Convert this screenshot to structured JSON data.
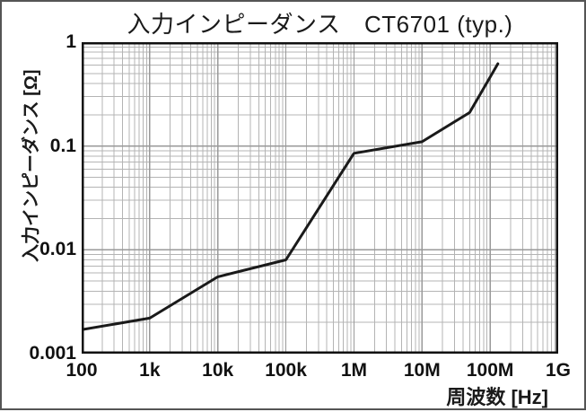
{
  "chart_data": {
    "type": "line",
    "title": "入力インピーダンス　CT6701 (typ.)",
    "xlabel": "周波数 [Hz]",
    "ylabel": "入力インピーダンス [Ω]",
    "xscale": "log",
    "yscale": "log",
    "xlim": [
      100,
      1000000000
    ],
    "ylim": [
      0.001,
      1
    ],
    "grid": "major+minor log-log, gray",
    "legend": "none",
    "x_ticks": {
      "values": [
        100,
        1000,
        10000,
        100000,
        1000000,
        10000000,
        100000000,
        1000000000
      ],
      "labels": [
        "100",
        "1k",
        "10k",
        "100k",
        "1M",
        "10M",
        "100M",
        "1G"
      ]
    },
    "y_ticks": {
      "values": [
        1,
        0.1,
        0.01,
        0.001
      ],
      "labels": [
        "1",
        "0.1",
        "0.01",
        "0.001"
      ]
    },
    "series": [
      {
        "name": "CT6701 (typ.)",
        "x": [
          100,
          1000,
          10000,
          100000,
          1000000,
          10000000,
          50000000,
          130000000
        ],
        "y": [
          0.0017,
          0.0022,
          0.0055,
          0.008,
          0.085,
          0.11,
          0.21,
          0.62
        ]
      }
    ],
    "colors": {
      "line": "#1a1a1a",
      "grid_minor": "#b4b4b4",
      "grid_major": "#999999",
      "axis_border": "#111111",
      "text": "#111111",
      "background": "#ffffff",
      "outer_border": "#555555"
    }
  }
}
